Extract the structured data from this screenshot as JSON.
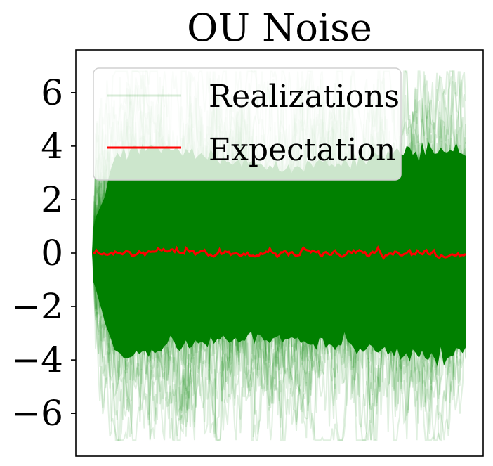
{
  "chart_data": {
    "type": "line",
    "title": "OU Noise",
    "xlabel": "",
    "ylabel": "",
    "ylim": [
      -7.6,
      7.6
    ],
    "yticks": [
      6,
      4,
      2,
      0,
      -2,
      -4,
      -6
    ],
    "ytick_labels": [
      "6",
      "4",
      "2",
      "0",
      "−2",
      "−4",
      "−6"
    ],
    "xticks_visible": false,
    "grid": false,
    "legend_position": "top-left",
    "series": [
      {
        "name": "Realizations",
        "color": "#008000",
        "alpha": 0.12,
        "envelope_upper_peak": 6.8,
        "envelope_lower_peak": -7.0,
        "dense_band": [
          -3.5,
          3.5
        ]
      },
      {
        "name": "Expectation",
        "color": "#ff0000",
        "values_approx": 0.0,
        "range": [
          -0.2,
          0.2
        ]
      }
    ]
  }
}
